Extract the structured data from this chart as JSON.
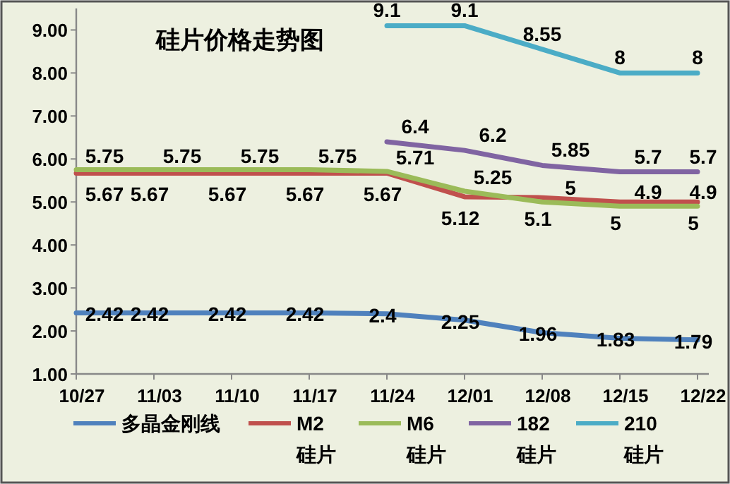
{
  "chart_data": {
    "type": "line",
    "title": "硅片价格走势图",
    "categories": [
      "10/27",
      "11/03",
      "11/10",
      "11/17",
      "11/24",
      "12/01",
      "12/08",
      "12/15",
      "12/22"
    ],
    "series": [
      {
        "name": "多晶金刚线",
        "color": "#4f81bd",
        "values": [
          2.42,
          2.42,
          2.42,
          2.42,
          2.4,
          2.25,
          1.96,
          1.83,
          1.79
        ]
      },
      {
        "name": "M2 硅片",
        "color": "#c0504d",
        "values": [
          5.67,
          5.67,
          5.67,
          5.67,
          5.67,
          5.12,
          5.1,
          5,
          5
        ]
      },
      {
        "name": "M6 硅片",
        "color": "#9bbb59",
        "values": [
          5.75,
          5.75,
          5.75,
          5.75,
          5.71,
          5.25,
          5,
          4.9,
          4.9
        ]
      },
      {
        "name": "182 硅片",
        "color": "#8064a2",
        "values": [
          null,
          null,
          null,
          null,
          6.4,
          6.2,
          5.85,
          5.7,
          5.7
        ]
      },
      {
        "name": "210 硅片",
        "color": "#4bacc6",
        "values": [
          null,
          null,
          null,
          null,
          9.1,
          9.1,
          8.55,
          8,
          8
        ]
      }
    ],
    "ylim": [
      1,
      9.5
    ],
    "yticks": [
      {
        "value": 1,
        "label": "1.00"
      },
      {
        "value": 2,
        "label": "2.00"
      },
      {
        "value": 3,
        "label": "3.00"
      },
      {
        "value": 4,
        "label": "4.00"
      },
      {
        "value": 5,
        "label": "5.00"
      },
      {
        "value": 6,
        "label": "6.00"
      },
      {
        "value": 7,
        "label": "7.00"
      },
      {
        "value": 8,
        "label": "8.00"
      },
      {
        "value": 9,
        "label": "9.00"
      }
    ],
    "data_labels": true,
    "legend": "bottom",
    "grid": false,
    "marker": "none",
    "line_style": "solid"
  }
}
